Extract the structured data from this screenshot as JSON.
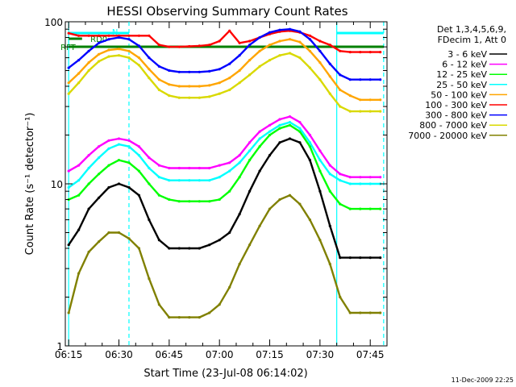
{
  "chart_data": {
    "type": "line",
    "title": "HESSI Observing Summary Count Rates",
    "xlabel": "Start Time (23-Jul-08 06:14:02)",
    "ylabel": "Count Rate (s⁻¹ detector⁻¹)",
    "yscale": "log",
    "ylim": [
      1,
      100
    ],
    "xlim": [
      "06:14",
      "07:50"
    ],
    "grid": false,
    "legend_position": "right",
    "legend_header": [
      "Det 1,3,4,5,6,9,",
      "FDecim 1, Att 0"
    ],
    "date_stamp": "11-Dec-2009 22:25",
    "x_ticks": [
      "06:15",
      "06:30",
      "06:45",
      "07:00",
      "07:15",
      "07:30",
      "07:45"
    ],
    "y_ticks": [
      "1",
      "10",
      "100"
    ],
    "x": [
      "06:15",
      "06:18",
      "06:21",
      "06:24",
      "06:27",
      "06:30",
      "06:33",
      "06:36",
      "06:39",
      "06:42",
      "06:45",
      "06:48",
      "06:51",
      "06:54",
      "06:57",
      "07:00",
      "07:03",
      "07:06",
      "07:09",
      "07:12",
      "07:15",
      "07:18",
      "07:21",
      "07:24",
      "07:27",
      "07:30",
      "07:33",
      "07:36",
      "07:39",
      "07:42",
      "07:45",
      "07:48"
    ],
    "series": [
      {
        "name": "3 - 6 keV",
        "color": "#000000",
        "values": [
          4.2,
          5.2,
          7.0,
          8.2,
          9.5,
          10.0,
          9.5,
          8.5,
          6.0,
          4.5,
          4.0,
          4.0,
          4.0,
          4.0,
          4.2,
          4.5,
          5.0,
          6.5,
          9.0,
          12.0,
          15.0,
          18.0,
          19.0,
          18.0,
          14.0,
          9.0,
          5.5,
          3.5,
          3.5,
          3.5,
          3.5,
          3.5
        ]
      },
      {
        "name": "6 - 12 keV",
        "color": "#ff00ff",
        "values": [
          12.0,
          13.0,
          15.0,
          17.0,
          18.5,
          19.0,
          18.5,
          17.0,
          14.5,
          13.0,
          12.5,
          12.5,
          12.5,
          12.5,
          12.5,
          13.0,
          13.5,
          15.0,
          18.0,
          21.0,
          23.0,
          25.0,
          26.0,
          24.0,
          20.0,
          16.0,
          13.0,
          11.5,
          11.0,
          11.0,
          11.0,
          11.0
        ]
      },
      {
        "name": "12 - 25 keV",
        "color": "#00ff00",
        "values": [
          8.0,
          8.5,
          10.0,
          11.5,
          13.0,
          14.0,
          13.5,
          12.0,
          10.0,
          8.5,
          8.0,
          7.8,
          7.8,
          7.8,
          7.8,
          8.0,
          9.0,
          11.0,
          14.0,
          17.0,
          20.0,
          22.0,
          23.0,
          21.0,
          17.0,
          12.0,
          9.0,
          7.5,
          7.0,
          7.0,
          7.0,
          7.0
        ]
      },
      {
        "name": "25 - 50 keV",
        "color": "#00ffff",
        "values": [
          9.5,
          10.5,
          12.5,
          14.5,
          16.5,
          17.5,
          17.0,
          15.0,
          12.5,
          11.0,
          10.5,
          10.5,
          10.5,
          10.5,
          10.5,
          11.0,
          12.0,
          13.5,
          16.0,
          19.0,
          21.0,
          23.0,
          24.0,
          22.0,
          18.0,
          14.0,
          11.5,
          10.5,
          10.0,
          10.0,
          10.0,
          10.0
        ]
      },
      {
        "name": "50 - 100 keV",
        "color": "#ffa500",
        "values": [
          42.0,
          48.0,
          56.0,
          63.0,
          67.0,
          68.0,
          66.0,
          60.0,
          51.0,
          44.0,
          41.0,
          40.0,
          40.0,
          40.0,
          40.5,
          42.0,
          45.0,
          50.0,
          58.0,
          66.0,
          72.0,
          76.0,
          78.0,
          75.0,
          66.0,
          56.0,
          46.0,
          38.0,
          35.0,
          33.0,
          33.0,
          33.0
        ]
      },
      {
        "name": "100 - 300 keV",
        "color": "#ff0000",
        "values": [
          85.0,
          82.0,
          82.0,
          82.0,
          82.0,
          82.0,
          82.0,
          82.0,
          82.0,
          72.0,
          70.0,
          70.0,
          70.5,
          71.0,
          72.0,
          76.0,
          88.0,
          74.0,
          76.0,
          80.0,
          84.0,
          87.0,
          88.0,
          86.0,
          82.0,
          76.0,
          72.0,
          66.0,
          65.0,
          65.0,
          65.0,
          65.0
        ]
      },
      {
        "name": "300 - 800 keV",
        "color": "#0000ff",
        "values": [
          52.0,
          58.0,
          66.0,
          74.0,
          78.0,
          80.0,
          78.0,
          71.0,
          60.0,
          53.0,
          50.0,
          49.0,
          49.0,
          49.0,
          49.5,
          51.0,
          55.0,
          62.0,
          72.0,
          80.0,
          86.0,
          89.0,
          90.0,
          87.0,
          78.0,
          66.0,
          55.0,
          47.0,
          44.0,
          44.0,
          44.0,
          44.0
        ]
      },
      {
        "name": "800 - 7000 keV",
        "color": "#d9d900",
        "values": [
          36.0,
          42.0,
          50.0,
          57.0,
          61.0,
          62.0,
          60.0,
          54.0,
          45.0,
          38.0,
          35.0,
          34.0,
          34.0,
          34.0,
          34.5,
          36.0,
          38.0,
          42.0,
          47.0,
          53.0,
          58.0,
          62.0,
          64.0,
          60.0,
          52.0,
          44.0,
          36.0,
          30.0,
          28.0,
          28.0,
          28.0,
          28.0
        ]
      },
      {
        "name": "7000 - 20000 keV",
        "color": "#808000",
        "values": [
          1.6,
          2.8,
          3.8,
          4.4,
          5.0,
          5.0,
          4.6,
          4.0,
          2.6,
          1.8,
          1.5,
          1.5,
          1.5,
          1.5,
          1.6,
          1.8,
          2.3,
          3.2,
          4.2,
          5.5,
          7.0,
          8.0,
          8.5,
          7.5,
          6.0,
          4.5,
          3.2,
          2.0,
          1.6,
          1.6,
          1.6,
          1.6
        ]
      }
    ],
    "orbit_bars": [
      {
        "label": "N",
        "start": "06:15",
        "end": "06:33",
        "color": "#00ffff"
      },
      {
        "label": "",
        "start": "07:35",
        "end": "07:49",
        "color": "#00ffff"
      }
    ],
    "state_bars": [
      {
        "label": "RD0",
        "start": "06:15",
        "end": "06:19",
        "color": "#008000"
      },
      {
        "label": "RFT",
        "start": "06:15",
        "end": "07:49",
        "color": "#008000"
      }
    ],
    "dashed_lines": [
      "06:33",
      "07:49"
    ],
    "solid_lines": [
      "06:15",
      "07:35"
    ]
  }
}
